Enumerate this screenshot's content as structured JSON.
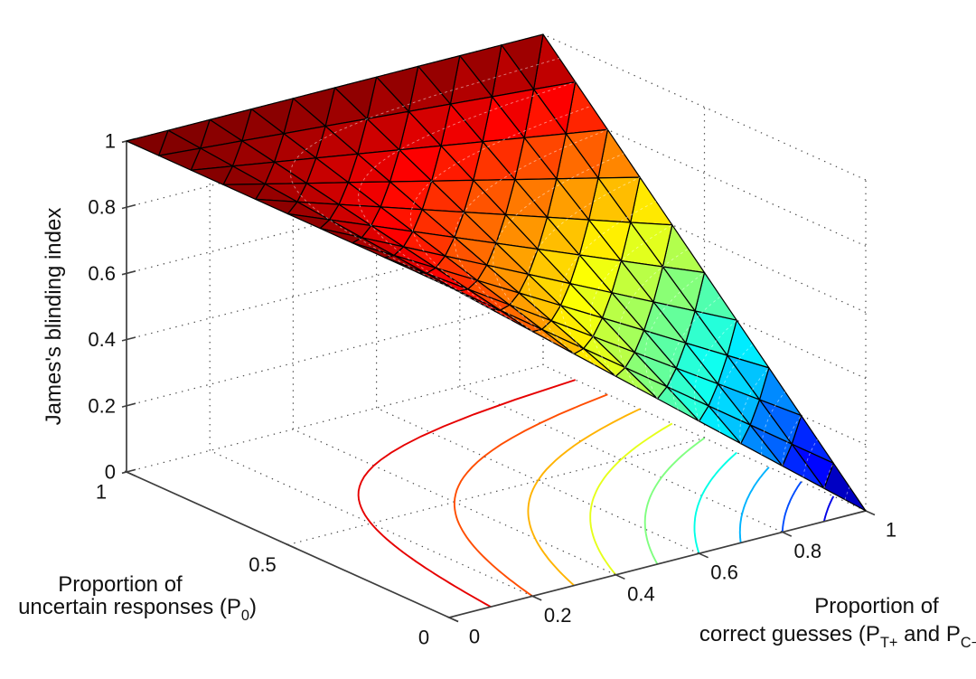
{
  "figure": {
    "background": "#ffffff"
  },
  "styles": {
    "axis_color": "#3d3d3d",
    "grid_color": "#4a4a4a",
    "text_color": "#111111",
    "surface_edge_color": "#000000",
    "surface_overlay_color": "rgba(255,255,255,0.5)"
  },
  "chart_data": {
    "type": "surface3d",
    "title": "",
    "z_formula": "BI = 1 − x·(1 − y)",
    "colormap": "jet",
    "caxis": [
      0,
      1
    ],
    "x_axis": {
      "label_lines": [
        [
          {
            "text": "Proportion of"
          }
        ],
        [
          {
            "text": "correct guesses (P"
          },
          {
            "text": "T+",
            "sub": true
          },
          {
            "text": " and P"
          },
          {
            "text": "C−",
            "sub": true
          },
          {
            "text": ")"
          }
        ]
      ],
      "ticks": [
        "0",
        "0.2",
        "0.4",
        "0.6",
        "0.8",
        "1"
      ],
      "tick_values": [
        0,
        0.2,
        0.4,
        0.6,
        0.8,
        1
      ],
      "range": [
        0,
        1
      ]
    },
    "y_axis": {
      "label_lines": [
        [
          {
            "text": "Proportion of"
          }
        ],
        [
          {
            "text": "uncertain responses (P"
          },
          {
            "text": "0",
            "sub": true
          },
          {
            "text": ")"
          }
        ]
      ],
      "ticks": [
        "0",
        "0.5",
        "1"
      ],
      "tick_values": [
        0,
        0.5,
        1
      ],
      "range": [
        0,
        1
      ]
    },
    "z_axis": {
      "label": "James's blinding index",
      "ticks": [
        "0",
        "0.2",
        "0.4",
        "0.6",
        "0.8",
        "1"
      ],
      "tick_values": [
        0,
        0.2,
        0.4,
        0.6,
        0.8,
        1
      ],
      "range": [
        0,
        1
      ]
    },
    "surface": {
      "grid_x": [
        0,
        0.1,
        0.2,
        0.3,
        0.4,
        0.5,
        0.6,
        0.7,
        0.8,
        0.9,
        1
      ],
      "grid_y": [
        0,
        0.1,
        0.2,
        0.3,
        0.4,
        0.5,
        0.6,
        0.7,
        0.8,
        0.9,
        1
      ],
      "z_values": [
        [
          1,
          0.9,
          0.8,
          0.7,
          0.6,
          0.5,
          0.4,
          0.3,
          0.2,
          0.1,
          0
        ],
        [
          1,
          0.91,
          0.82,
          0.73,
          0.64,
          0.55,
          0.46,
          0.37,
          0.28,
          0.19,
          0.1
        ],
        [
          1,
          0.92,
          0.84,
          0.76,
          0.68,
          0.6,
          0.52,
          0.44,
          0.36,
          0.28,
          0.2
        ],
        [
          1,
          0.93,
          0.86,
          0.79,
          0.72,
          0.65,
          0.58,
          0.51,
          0.44,
          0.37,
          0.3
        ],
        [
          1,
          0.94,
          0.88,
          0.82,
          0.76,
          0.7,
          0.64,
          0.58,
          0.52,
          0.46,
          0.4
        ],
        [
          1,
          0.95,
          0.9,
          0.85,
          0.8,
          0.75,
          0.7,
          0.65,
          0.6,
          0.55,
          0.5
        ],
        [
          1,
          0.96,
          0.92,
          0.88,
          0.84,
          0.8,
          0.76,
          0.72,
          0.68,
          0.64,
          0.6
        ],
        [
          1,
          0.97,
          0.94,
          0.91,
          0.88,
          0.85,
          0.82,
          0.79,
          0.76,
          0.73,
          0.7
        ],
        [
          1,
          0.98,
          0.96,
          0.94,
          0.92,
          0.9,
          0.88,
          0.86,
          0.84,
          0.82,
          0.8
        ],
        [
          1,
          0.99,
          0.98,
          0.97,
          0.96,
          0.95,
          0.94,
          0.93,
          0.92,
          0.91,
          0.9
        ],
        [
          1,
          1,
          1,
          1,
          1,
          1,
          1,
          1,
          1,
          1,
          1
        ]
      ]
    },
    "floor_contours": {
      "plane": "z = 0",
      "levels": [
        0.1,
        0.2,
        0.3,
        0.4,
        0.5,
        0.6,
        0.7,
        0.8,
        0.9
      ],
      "colors": [
        "#0000e6",
        "#004dff",
        "#00b3ff",
        "#00ffe6",
        "#80ff80",
        "#e6ff1a",
        "#ffb300",
        "#ff4d00",
        "#e60000"
      ]
    },
    "surface_contours": {
      "levels": [
        0.05,
        0.1,
        0.15,
        0.2,
        0.25,
        0.3,
        0.35,
        0.4,
        0.45,
        0.5,
        0.55,
        0.6,
        0.65,
        0.7,
        0.75,
        0.8,
        0.85,
        0.9,
        0.95
      ],
      "style": "dashed"
    }
  }
}
